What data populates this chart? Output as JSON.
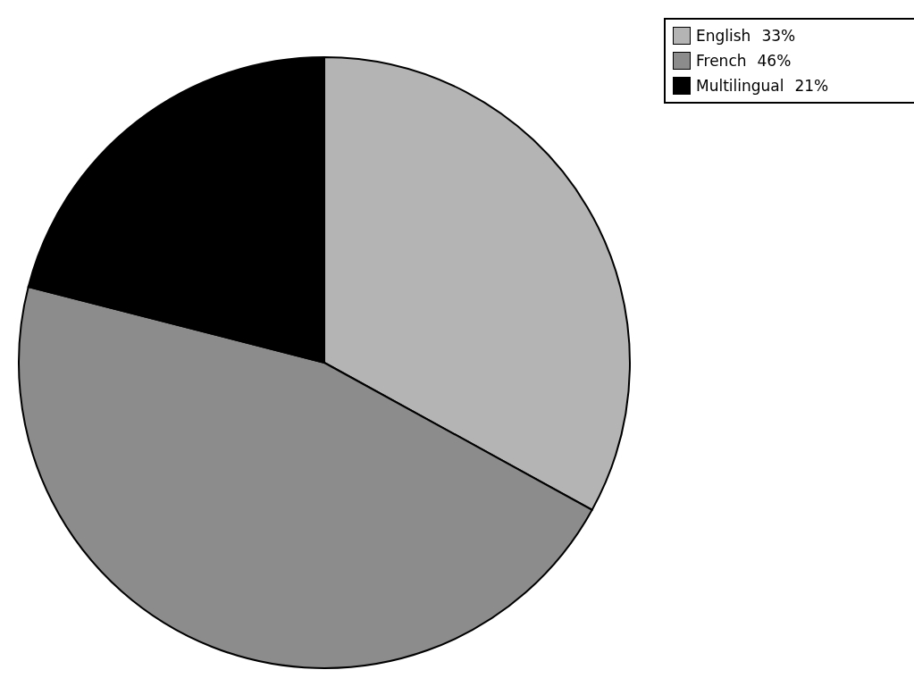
{
  "chart_data": {
    "type": "pie",
    "categories": [
      "English",
      "French",
      "Multilingual"
    ],
    "values": [
      33,
      46,
      21
    ],
    "value_labels": [
      "33%",
      "46%",
      "21%"
    ],
    "colors": [
      "#b4b4b4",
      "#8c8c8c",
      "#000000"
    ],
    "legend": "top right"
  }
}
